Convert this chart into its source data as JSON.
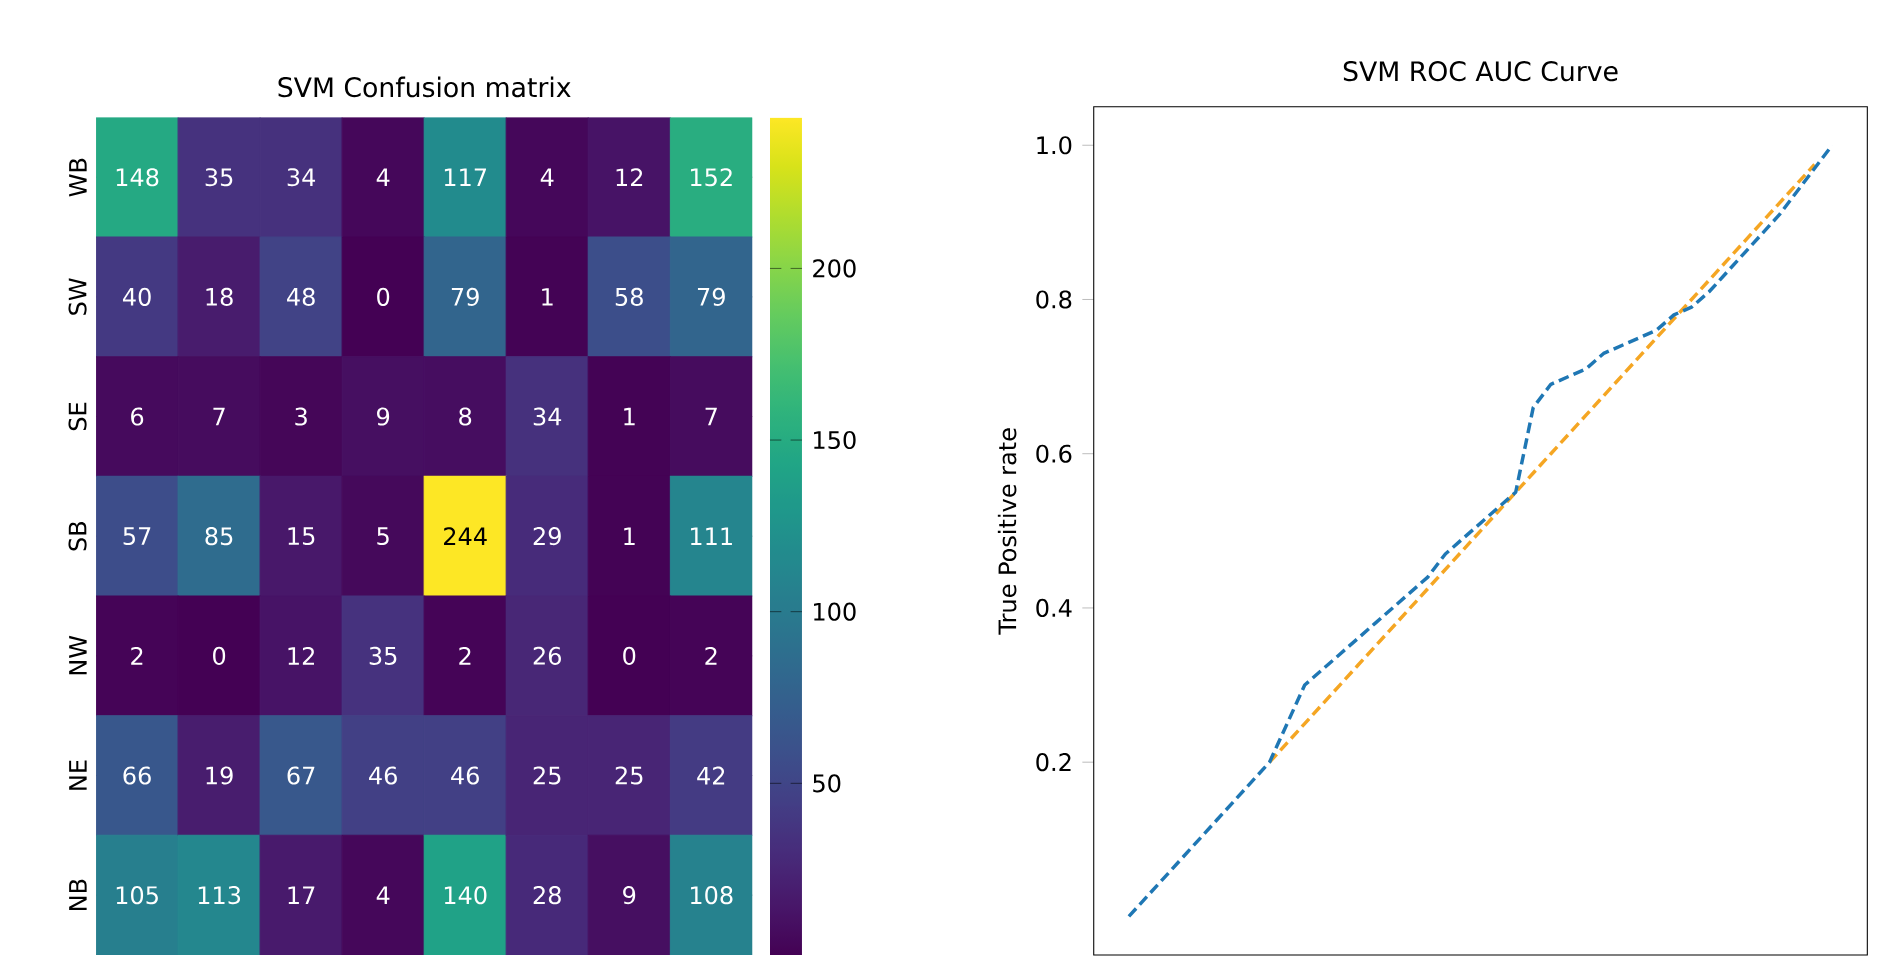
{
  "chart_data": [
    {
      "type": "heatmap",
      "title": "SVM Confusion matrix",
      "categories": [
        null,
        null,
        null,
        null,
        null,
        null,
        null,
        null
      ],
      "y_categories": [
        "WB",
        "SW",
        "SE",
        "SB",
        "NW",
        "NE",
        "NB"
      ],
      "cells": [
        [
          148,
          35,
          34,
          4,
          117,
          4,
          12,
          152
        ],
        [
          40,
          18,
          48,
          0,
          79,
          1,
          58,
          79
        ],
        [
          6,
          7,
          3,
          9,
          8,
          34,
          1,
          7
        ],
        [
          57,
          85,
          15,
          5,
          244,
          29,
          1,
          111
        ],
        [
          2,
          0,
          12,
          35,
          2,
          26,
          0,
          2
        ],
        [
          66,
          19,
          67,
          46,
          46,
          25,
          25,
          42
        ],
        [
          105,
          113,
          17,
          4,
          140,
          28,
          9,
          108
        ]
      ],
      "data_labels": true,
      "clim": [
        0,
        244
      ],
      "cticks": [
        50,
        100,
        150,
        200
      ]
    },
    {
      "type": "line",
      "title": "SVM ROC AUC Curve",
      "ylabel": "True Positive rate",
      "categories": [
        null,
        null,
        null,
        null,
        null,
        null,
        null,
        null,
        null,
        null,
        null,
        null,
        null,
        null,
        null,
        null,
        null,
        null,
        null,
        null,
        null,
        null,
        null,
        null,
        null,
        null,
        null,
        null,
        null,
        null,
        null,
        null,
        null,
        null,
        null,
        null,
        null,
        null,
        null,
        null,
        null
      ],
      "ylim": [
        -0.05,
        1.05
      ],
      "yticks": [
        0.2,
        0.4,
        0.6,
        0.8,
        {
          "value": 1,
          "label": "1.0"
        }
      ],
      "tick_labels": "y",
      "line_style": "dashed",
      "series": [
        {
          "color": "#f5a623",
          "values": [
            null,
            null,
            null,
            null,
            null,
            null,
            null,
            null,
            0.2,
            0.225,
            0.25,
            0.275,
            0.3,
            0.325,
            0.35,
            0.375,
            0.4,
            0.425,
            0.45,
            0.475,
            0.5,
            0.525,
            0.55,
            0.575,
            0.6,
            0.625,
            0.65,
            0.675,
            0.7,
            0.725,
            0.75,
            0.775,
            0.8,
            0.825,
            0.85,
            0.875,
            0.9,
            0.925,
            0.95,
            0.975,
            null
          ]
        },
        {
          "color": "#1f77b4",
          "values": [
            0,
            0.025,
            0.05,
            0.075,
            0.1,
            0.125,
            0.15,
            0.175,
            0.2,
            0.25,
            0.3,
            0.32,
            0.34,
            0.36,
            0.38,
            0.4,
            0.42,
            0.44,
            0.47,
            0.49,
            0.51,
            0.53,
            0.55,
            0.66,
            0.69,
            0.7,
            0.71,
            0.73,
            0.74,
            0.75,
            0.76,
            0.78,
            0.79,
            0.81,
            0.835,
            0.86,
            0.885,
            0.91,
            0.94,
            0.97,
            1
          ]
        }
      ]
    }
  ]
}
